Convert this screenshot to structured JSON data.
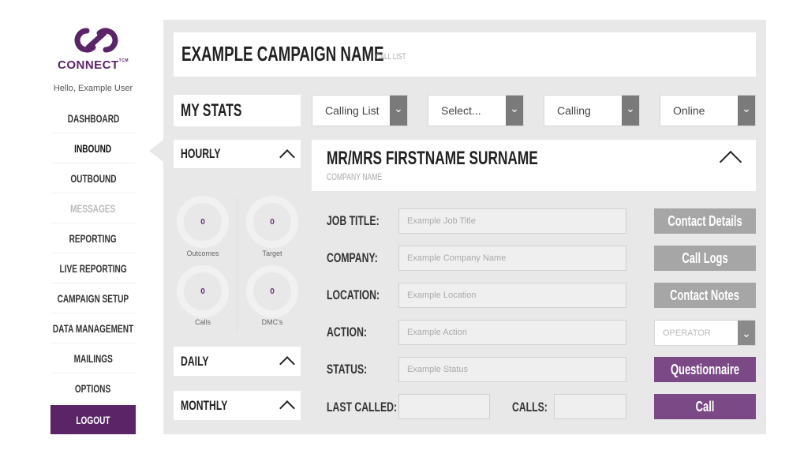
{
  "brand": {
    "name": "CONNECT",
    "suffix": "TCM",
    "color": "#5a2466"
  },
  "greeting": "Hello, Example User",
  "nav": [
    "DASHBOARD",
    "INBOUND",
    "OUTBOUND",
    "MESSAGES",
    "REPORTING",
    "LIVE REPORTING",
    "CAMPAIGN SETUP",
    "DATA MANAGEMENT",
    "MAILINGS",
    "OPTIONS"
  ],
  "logout": "LOGOUT",
  "campaign": {
    "name": "EXAMPLE CAMPAIGN NAME",
    "sub": "CALL LIST"
  },
  "stats": {
    "title": "MY STATS",
    "hourly": "HOURLY",
    "daily": "DAILY",
    "monthly": "MONTHLY",
    "rings": [
      {
        "value": "0",
        "label": "Outcomes"
      },
      {
        "value": "0",
        "label": "Target"
      },
      {
        "value": "0",
        "label": "Calls"
      },
      {
        "value": "0",
        "label": "DMC's"
      }
    ]
  },
  "dropdowns": [
    "Calling List",
    "Select...",
    "Calling",
    "Online"
  ],
  "contact": {
    "name": "MR/MRS FIRSTNAME SURNAME",
    "company": "COMPANY NAME"
  },
  "form": {
    "job_title": {
      "label": "JOB TITLE:",
      "placeholder": "Example Job Title"
    },
    "company": {
      "label": "COMPANY:",
      "placeholder": "Example Company Name"
    },
    "location": {
      "label": "LOCATION:",
      "placeholder": "Example Location"
    },
    "action": {
      "label": "ACTION:",
      "placeholder": "Example Action"
    },
    "status": {
      "label": "STATUS:",
      "placeholder": "Example Status"
    },
    "last_called": {
      "label": "LAST CALLED:"
    },
    "calls": {
      "label": "CALLS:"
    }
  },
  "buttons": {
    "contact_details": "Contact Details",
    "call_logs": "Call Logs",
    "contact_notes": "Contact Notes",
    "operator": "OPERATOR",
    "questionnaire": "Questionnaire",
    "call": "Call"
  },
  "colors": {
    "accent": "#7b4a86",
    "button_gray": "#a6a6a6",
    "panel": "#e8e8e8"
  }
}
